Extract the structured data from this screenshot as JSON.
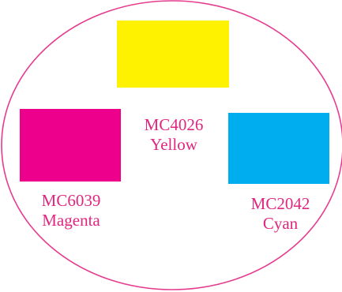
{
  "colors": {
    "outline": "#e63c8f",
    "label_text": "#e0267f"
  },
  "swatches": [
    {
      "code": "MC4026",
      "name": "Yellow",
      "hex": "#fff200"
    },
    {
      "code": "MC6039",
      "name": "Magenta",
      "hex": "#ec008c"
    },
    {
      "code": "MC2042",
      "name": "Cyan",
      "hex": "#00aeef"
    }
  ]
}
